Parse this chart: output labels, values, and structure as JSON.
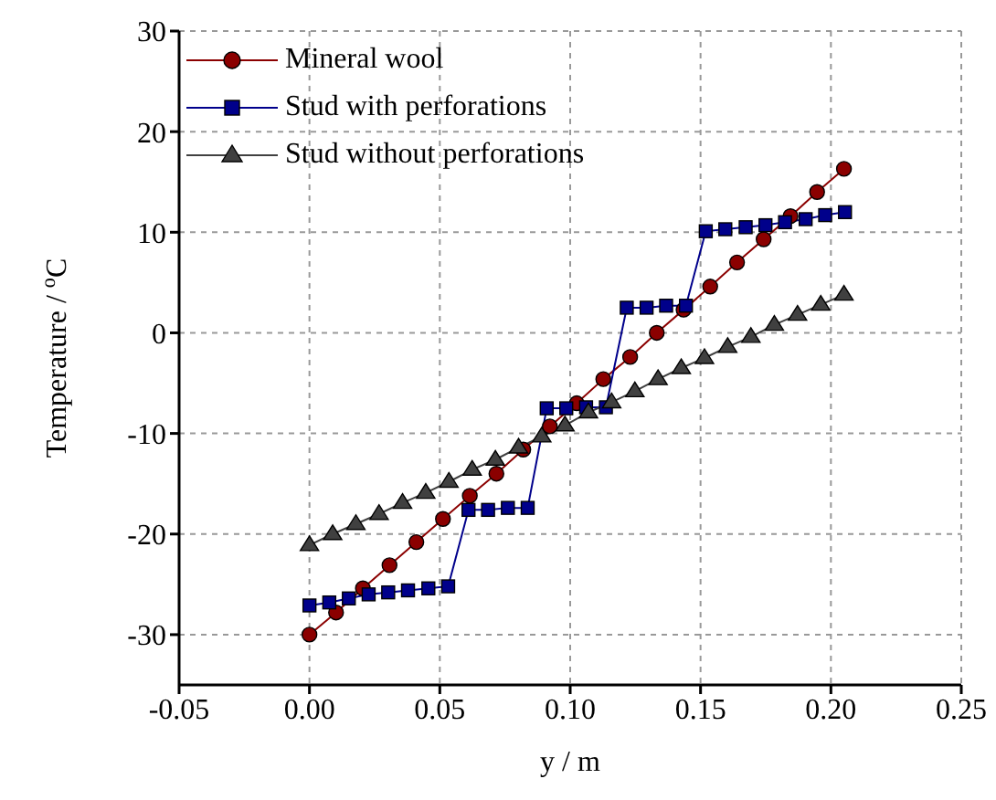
{
  "chart_data": {
    "type": "line",
    "xlabel": "y / m",
    "ylabel": "Temperature / $^{o}$C",
    "xlim": [
      -0.05,
      0.25
    ],
    "xticks": [
      {
        "value": -0.05,
        "label": "-0.05"
      },
      {
        "value": 0,
        "label": "0.00"
      },
      {
        "value": 0.05,
        "label": "0.05"
      },
      {
        "value": 0.1,
        "label": "0.10"
      },
      {
        "value": 0.15,
        "label": "0.15"
      },
      {
        "value": 0.2,
        "label": "0.20"
      },
      {
        "value": 0.25,
        "label": "0.25"
      }
    ],
    "ylim": [
      -35,
      30
    ],
    "yticks": [
      -30,
      -20,
      -10,
      0,
      10,
      20,
      30
    ],
    "grid": true,
    "legend": "top left",
    "line_style": "solid",
    "series": [
      {
        "name": "Mineral wool",
        "color": "#8b0000",
        "marker": "circle",
        "x": [
          0,
          0.0102,
          0.0205,
          0.0307,
          0.041,
          0.0512,
          0.0615,
          0.0717,
          0.082,
          0.0922,
          0.1025,
          0.1127,
          0.123,
          0.1332,
          0.1435,
          0.1537,
          0.164,
          0.1742,
          0.1845,
          0.1947,
          0.205
        ],
        "values": [
          -30,
          -27.8,
          -25.4,
          -23.1,
          -20.8,
          -18.5,
          -16.2,
          -14.0,
          -11.6,
          -9.3,
          -7.0,
          -4.6,
          -2.4,
          0,
          2.3,
          4.6,
          7.0,
          9.3,
          11.6,
          14.0,
          16.3
        ]
      },
      {
        "name": "Stud with perforations",
        "color": "#00008b",
        "marker": "square",
        "x": [
          0,
          0.0076,
          0.0151,
          0.0227,
          0.0302,
          0.0378,
          0.0456,
          0.0532,
          0.061,
          0.0685,
          0.0761,
          0.0837,
          0.091,
          0.0985,
          0.1061,
          0.1137,
          0.1217,
          0.1293,
          0.1368,
          0.1444,
          0.152,
          0.1595,
          0.1673,
          0.1749,
          0.1824,
          0.1903,
          0.1978,
          0.2054
        ],
        "values": [
          -27.1,
          -26.8,
          -26.4,
          -26.0,
          -25.8,
          -25.6,
          -25.4,
          -25.2,
          -17.6,
          -17.6,
          -17.4,
          -17.4,
          -7.5,
          -7.5,
          -7.4,
          -7.4,
          2.5,
          2.5,
          2.7,
          2.7,
          10.1,
          10.3,
          10.5,
          10.7,
          11.0,
          11.3,
          11.7,
          12.0
        ]
      },
      {
        "name": "Stud without perforations",
        "color": "#404040",
        "marker": "triangle",
        "x": [
          0,
          0.0089,
          0.0178,
          0.0267,
          0.0357,
          0.0446,
          0.0535,
          0.0624,
          0.0713,
          0.0802,
          0.0891,
          0.098,
          0.107,
          0.1159,
          0.1248,
          0.1337,
          0.1426,
          0.1515,
          0.1604,
          0.1693,
          0.1783,
          0.1872,
          0.1961,
          0.205
        ],
        "values": [
          -21.1,
          -20.0,
          -19.0,
          -18.0,
          -16.9,
          -15.9,
          -14.8,
          -13.6,
          -12.6,
          -11.4,
          -10.3,
          -9.2,
          -7.9,
          -6.9,
          -5.8,
          -4.6,
          -3.5,
          -2.5,
          -1.4,
          -0.4,
          0.8,
          1.8,
          2.8,
          3.8
        ]
      }
    ]
  }
}
